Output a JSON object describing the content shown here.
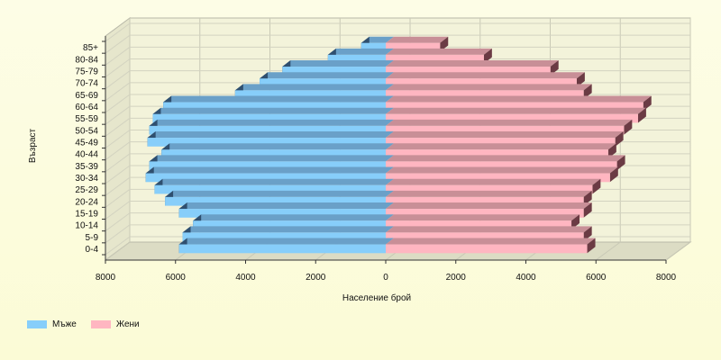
{
  "chart_data": {
    "type": "bar",
    "orientation": "horizontal",
    "style": "population-pyramid-3d",
    "title": "",
    "xlabel": "Население брой",
    "ylabel": "Възраст",
    "xlim": [
      -8000,
      8000
    ],
    "x_ticks": [
      -8000,
      -6000,
      -4000,
      -2000,
      0,
      2000,
      4000,
      6000,
      8000
    ],
    "x_tick_labels": [
      "8000",
      "6000",
      "4000",
      "2000",
      "0",
      "2000",
      "4000",
      "6000",
      "8000"
    ],
    "grid": true,
    "legend_position": "bottom-left",
    "categories": [
      "0-4",
      "5-9",
      "10-14",
      "15-19",
      "20-24",
      "25-29",
      "30-34",
      "35-39",
      "40-44",
      "45-49",
      "50-54",
      "55-59",
      "60-64",
      "65-69",
      "70-74",
      "75-79",
      "80-84",
      "85+"
    ],
    "series": [
      {
        "name": "Мъже",
        "color": "#87cefa",
        "values": [
          5900,
          5800,
          5500,
          5900,
          6300,
          6600,
          6850,
          6750,
          6400,
          6800,
          6750,
          6650,
          6350,
          4300,
          3600,
          2950,
          1650,
          700
        ]
      },
      {
        "name": "Жени",
        "color": "#ffb6c1",
        "values": [
          5750,
          5650,
          5300,
          5650,
          5650,
          5900,
          6400,
          6600,
          6350,
          6550,
          6800,
          7200,
          7350,
          5650,
          5450,
          4700,
          2800,
          1550
        ]
      }
    ]
  }
}
